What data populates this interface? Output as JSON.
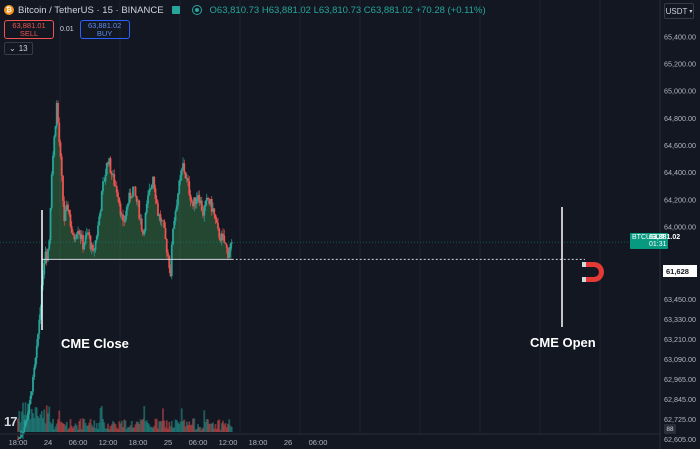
{
  "header": {
    "symbol_label": "Bitcoin / TetherUS · 15 · BINANCE",
    "coin_icon": "bitcoin-icon",
    "ohlc": {
      "open": "O63,810.73",
      "high": "H63,881.02",
      "low": "L63,810.73",
      "close": "C63,881.02",
      "change": "+70.28 (+0.11%)"
    },
    "colors": {
      "up": "#26a69a",
      "down": "#ef5350",
      "background": "#131722"
    }
  },
  "trade": {
    "sell_price": "63,881.01",
    "sell_label": "SELL",
    "spread": "0.01",
    "buy_price": "63,881.02",
    "buy_label": "BUY"
  },
  "indicators_count": "13",
  "currency": "USDT",
  "price_tag": {
    "symbol": "BTCUSDT",
    "price": "63,881.02",
    "countdown": "01:31"
  },
  "magnet_level_label": "61,628",
  "auto_scale": "88",
  "tv_logo": "17",
  "annotations": {
    "left": "CME Close",
    "right": "CME Open"
  },
  "chart_data": {
    "type": "candlestick",
    "y_axis_labels": [
      "65,400.00",
      "65,200.00",
      "65,000.00",
      "64,800.00",
      "64,600.00",
      "64,400.00",
      "64,200.00",
      "64,000.00",
      "63,450.00",
      "63,330.00",
      "63,210.00",
      "63,090.00",
      "62,965.00",
      "62,845.00",
      "62,725.00",
      "62,605.00"
    ],
    "x_axis_labels": [
      "18:00",
      "24",
      "06:00",
      "12:00",
      "18:00",
      "25",
      "06:00",
      "12:00",
      "18:00",
      "26",
      "06:00"
    ],
    "ylim": [
      62560,
      65520
    ],
    "gap_fill_level": 63750,
    "current_price": 63881.02,
    "close_path": [
      [
        "23T18:00",
        62600
      ],
      [
        "23T18:45",
        62640
      ],
      [
        "23T19:30",
        62700
      ],
      [
        "23T20:15",
        62800
      ],
      [
        "23T21:00",
        62960
      ],
      [
        "23T21:45",
        63150
      ],
      [
        "23T22:30",
        63420
      ],
      [
        "23T23:00",
        63650
      ],
      [
        "23T23:30",
        63820
      ],
      [
        "23T23:45",
        63760
      ],
      [
        "24T00:15",
        63900
      ],
      [
        "24T00:45",
        64400
      ],
      [
        "24T01:15",
        64650
      ],
      [
        "24T01:45",
        64900
      ],
      [
        "24T02:30",
        64480
      ],
      [
        "24T03:15",
        64050
      ],
      [
        "24T04:00",
        64150
      ],
      [
        "24T05:00",
        63900
      ],
      [
        "24T06:00",
        64000
      ],
      [
        "24T07:00",
        63860
      ],
      [
        "24T08:00",
        63950
      ],
      [
        "24T09:00",
        63780
      ],
      [
        "24T10:00",
        64000
      ],
      [
        "24T11:00",
        64300
      ],
      [
        "24T12:00",
        64500
      ],
      [
        "24T13:00",
        64350
      ],
      [
        "24T14:00",
        64250
      ],
      [
        "24T15:00",
        64000
      ],
      [
        "24T16:00",
        64180
      ],
      [
        "24T17:00",
        64280
      ],
      [
        "24T18:00",
        64150
      ],
      [
        "24T19:00",
        63950
      ],
      [
        "24T20:00",
        64200
      ],
      [
        "24T21:00",
        64380
      ],
      [
        "24T22:00",
        64100
      ],
      [
        "24T23:00",
        64000
      ],
      [
        "25T00:00",
        63780
      ],
      [
        "25T00:30",
        63650
      ],
      [
        "25T01:00",
        64000
      ],
      [
        "25T02:00",
        64250
      ],
      [
        "25T03:00",
        64450
      ],
      [
        "25T04:00",
        64300
      ],
      [
        "25T05:00",
        64150
      ],
      [
        "25T06:00",
        64250
      ],
      [
        "25T07:00",
        64100
      ],
      [
        "25T08:00",
        64200
      ],
      [
        "25T09:00",
        64120
      ],
      [
        "25T10:00",
        63950
      ],
      [
        "25T11:00",
        63900
      ],
      [
        "25T12:00",
        63800
      ],
      [
        "25T12:45",
        63881
      ]
    ],
    "markers": [
      "CME Close",
      "CME Open"
    ],
    "volume": "bars along bottom, heavy spike at start"
  }
}
